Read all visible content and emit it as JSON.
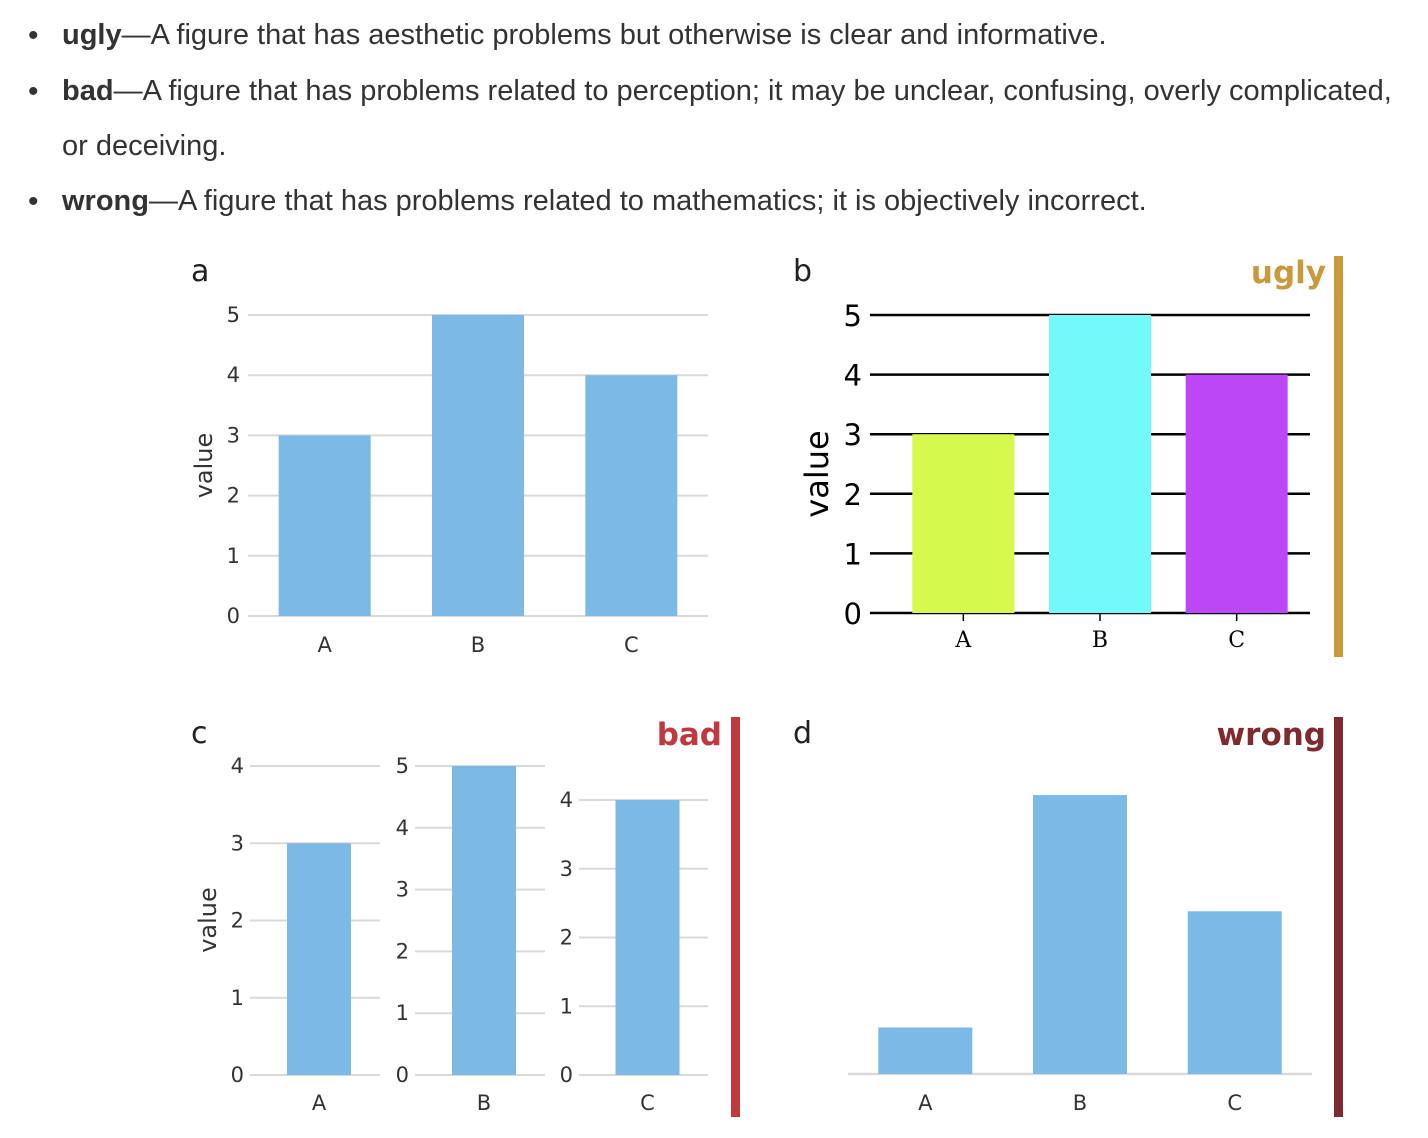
{
  "definitions": [
    {
      "term": "ugly",
      "sep": "—",
      "text": "A figure that has aesthetic problems but otherwise is clear and informative."
    },
    {
      "term": "bad",
      "sep": "—",
      "text": "A figure that has problems related to perception; it may be unclear, confusing, overly complicated, or deceiving."
    },
    {
      "term": "wrong",
      "sep": "—",
      "text": "A figure that has problems related to mathematics; it is objectively incorrect."
    }
  ],
  "colors": {
    "bar": "#7db9e5",
    "grid": "#d9d9d9",
    "ugly": "#c89a3c",
    "bad": "#c0393f",
    "wrong": "#7f2a2e",
    "ugly_bars": [
      "#d5f94d",
      "#72fafa",
      "#bb47f5"
    ]
  },
  "chart_data": [
    {
      "panel": "a",
      "type": "bar",
      "categories": [
        "A",
        "B",
        "C"
      ],
      "values": [
        3,
        5,
        4
      ],
      "ylabel": "value",
      "ylim": [
        0,
        5
      ],
      "yticks": [
        "0",
        "1",
        "2",
        "3",
        "4",
        "5"
      ],
      "grid": true
    },
    {
      "panel": "b",
      "verdict": "ugly",
      "type": "bar",
      "categories": [
        "A",
        "B",
        "C"
      ],
      "values": [
        3,
        5,
        4
      ],
      "ylabel": "value",
      "ylim": [
        0,
        5
      ],
      "yticks": [
        "0",
        "1",
        "2",
        "3",
        "4",
        "5"
      ],
      "grid": true
    },
    {
      "panel": "c",
      "verdict": "bad",
      "type": "bar",
      "ylabel": "value",
      "subplots": [
        {
          "category": "A",
          "value": 3,
          "ylim": [
            0,
            4
          ],
          "yticks": [
            "0",
            "1",
            "2",
            "3",
            "4"
          ]
        },
        {
          "category": "B",
          "value": 5,
          "ylim": [
            0,
            5
          ],
          "yticks": [
            "0",
            "1",
            "2",
            "3",
            "4",
            "5"
          ]
        },
        {
          "category": "C",
          "value": 4,
          "ylim": [
            0,
            4
          ],
          "yticks": [
            "0",
            "1",
            "2",
            "3",
            "4"
          ]
        }
      ]
    },
    {
      "panel": "d",
      "verdict": "wrong",
      "type": "bar",
      "categories": [
        "A",
        "B",
        "C"
      ],
      "values": [
        3,
        5,
        4
      ],
      "ylim": [
        2.6,
        5.25
      ],
      "axis": "none"
    }
  ]
}
